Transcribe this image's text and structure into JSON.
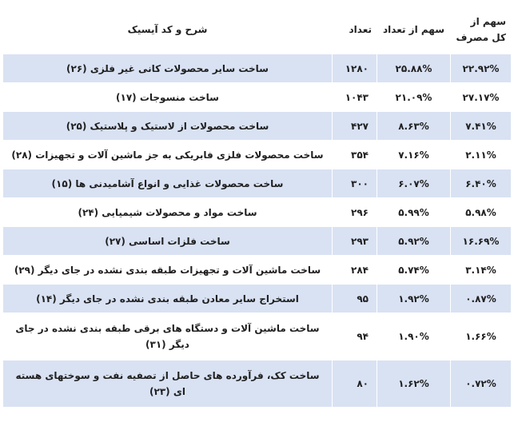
{
  "table": {
    "headers": {
      "share_total": "سهم از کل مصرف",
      "share_count": "سهم از تعداد",
      "count": "تعداد",
      "description": "شرح و کد آیسیک"
    },
    "rows": [
      {
        "share_total": "۲۲.۹۲%",
        "share_count": "۲۵.۸۸%",
        "count": "۱۲۸۰",
        "description": "ساخت سایر محصولات کانی غیر فلزی (۲۶)"
      },
      {
        "share_total": "۲۷.۱۷%",
        "share_count": "۲۱.۰۹%",
        "count": "۱۰۴۳",
        "description": "ساخت منسوجات (۱۷)"
      },
      {
        "share_total": "۷.۴۱%",
        "share_count": "۸.۶۳%",
        "count": "۴۲۷",
        "description": "ساخت محصولات از لاستیک و پلاستیک (۲۵)"
      },
      {
        "share_total": "۲.۱۱%",
        "share_count": "۷.۱۶%",
        "count": "۳۵۴",
        "description": "ساخت محصولات فلزی فابریکی به جز ماشین آلات و تجهیزات (۲۸)"
      },
      {
        "share_total": "۶.۴۰%",
        "share_count": "۶.۰۷%",
        "count": "۳۰۰",
        "description": "ساخت محصولات غذایی و انواع آشامیدنی ها (۱۵)"
      },
      {
        "share_total": "۵.۹۸%",
        "share_count": "۵.۹۹%",
        "count": "۲۹۶",
        "description": "ساخت مواد و محصولات شیمیایی (۲۴)"
      },
      {
        "share_total": "۱۶.۶۹%",
        "share_count": "۵.۹۲%",
        "count": "۲۹۳",
        "description": "ساخت فلزات اساسی (۲۷)"
      },
      {
        "share_total": "۳.۱۴%",
        "share_count": "۵.۷۴%",
        "count": "۲۸۴",
        "description": "ساخت ماشین آلات و تجهیزات طبقه بندی نشده در جای دیگر (۲۹)"
      },
      {
        "share_total": "۰.۸۷%",
        "share_count": "۱.۹۲%",
        "count": "۹۵",
        "description": "استخراج سایر معادن طبقه بندی نشده در جای دیگر (۱۴)"
      },
      {
        "share_total": "۱.۶۶%",
        "share_count": "۱.۹۰%",
        "count": "۹۴",
        "description": "ساخت ماشین آلات و دستگاه های برقی طبقه بندی نشده در جای دیگر (۳۱)"
      },
      {
        "share_total": "۰.۷۲%",
        "share_count": "۱.۶۲%",
        "count": "۸۰",
        "description": "ساخت کک، فرآورده های حاصل از تصفیه نفت و سوختهای هسته ای (۲۳)"
      }
    ]
  }
}
